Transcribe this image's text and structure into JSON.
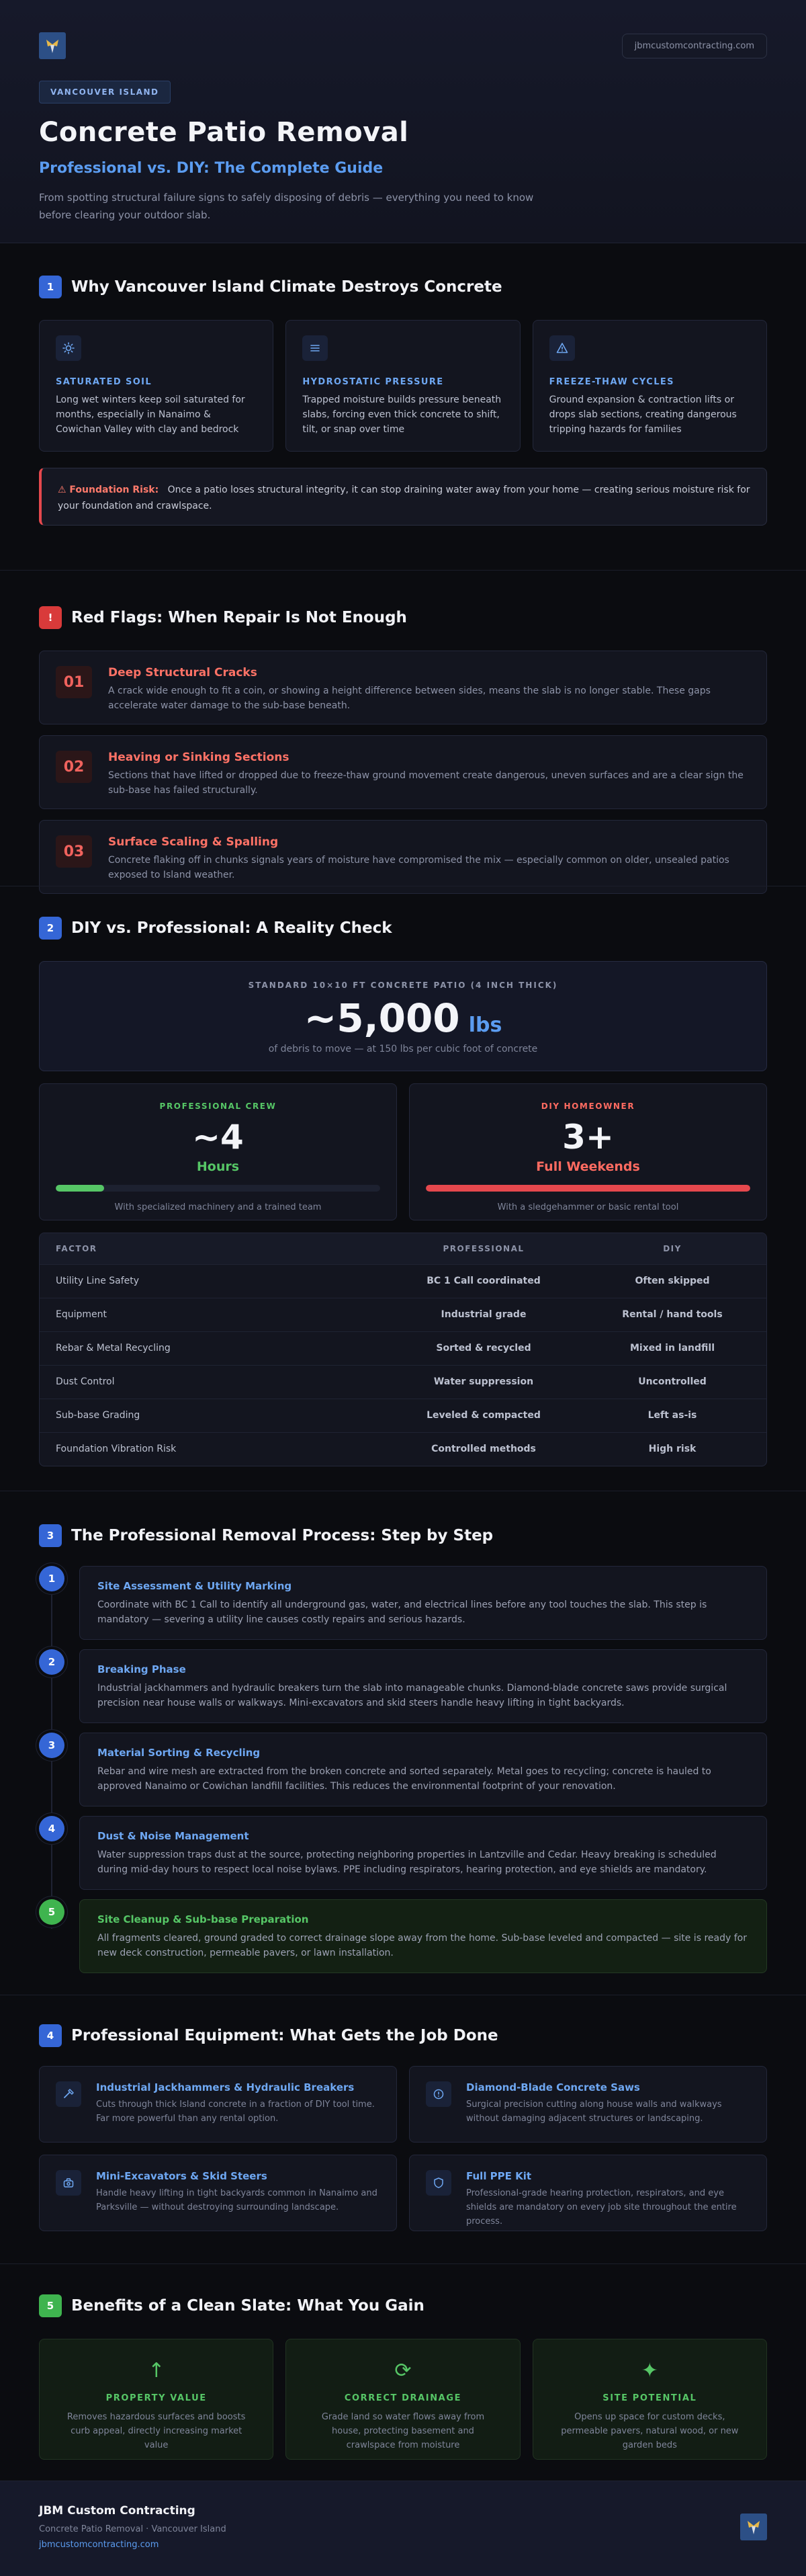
{
  "header": {
    "domain": "jbmcustomcontracting.com",
    "region": "VANCOUVER ISLAND",
    "title": "Concrete Patio Removal",
    "subtitle": "Professional vs. DIY: The Complete Guide",
    "lede": "From spotting structural failure signs to safely disposing of debris — everything you need to know before clearing your outdoor slab."
  },
  "climate": {
    "num": "1",
    "heading": "Why Vancouver Island Climate Destroys Concrete",
    "cards": [
      {
        "icon": "sun-icon",
        "label": "SATURATED SOIL",
        "text": "Long wet winters keep soil saturated for months, especially in Nanaimo & Cowichan Valley with clay and bedrock"
      },
      {
        "icon": "layers-icon",
        "label": "HYDROSTATIC PRESSURE",
        "text": "Trapped moisture builds pressure beneath slabs, forcing even thick concrete to shift, tilt, or snap over time"
      },
      {
        "icon": "warning-icon",
        "label": "FREEZE-THAW CYCLES",
        "text": "Ground expansion & contraction lifts or drops slab sections, creating dangerous tripping hazards for families"
      }
    ],
    "alert_key": "⚠ Foundation Risk:",
    "alert_text": "Once a patio loses structural integrity, it can stop draining water away from your home — creating serious moisture risk for your foundation and crawlspace."
  },
  "flags": {
    "num": "!",
    "heading": "Red Flags: When Repair Is Not Enough",
    "items": [
      {
        "n": "01",
        "title": "Deep Structural Cracks",
        "text": "A crack wide enough to fit a coin, or showing a height difference between sides, means the slab is no longer stable. These gaps accelerate water damage to the sub-base beneath."
      },
      {
        "n": "02",
        "title": "Heaving or Sinking Sections",
        "text": "Sections that have lifted or dropped due to freeze-thaw ground movement create dangerous, uneven surfaces and are a clear sign the sub-base has failed structurally."
      },
      {
        "n": "03",
        "title": "Surface Scaling & Spalling",
        "text": "Concrete flaking off in chunks signals years of moisture have compromised the mix — especially common on older, unsealed patios exposed to Island weather."
      }
    ]
  },
  "reality": {
    "num": "2",
    "heading": "DIY vs. Professional: A Reality Check",
    "stat_caption": "STANDARD 10×10 FT CONCRETE PATIO (4 INCH THICK)",
    "stat_value": "~5,000",
    "stat_unit": "lbs",
    "stat_note": "of debris to move — at 150 lbs per cubic foot of concrete",
    "pro": {
      "tag": "PROFESSIONAL CREW",
      "amount": "~4",
      "per": "Hours",
      "caption": "With specialized machinery and a trained team",
      "fill": 0.15,
      "color": "#56c666"
    },
    "diy": {
      "tag": "DIY HOMEOWNER",
      "amount": "3+",
      "per": "Full Weekends",
      "caption": "With a sledgehammer or basic rental tool",
      "fill": 1.0,
      "color": "#e5484d"
    },
    "table": {
      "headers": [
        "FACTOR",
        "PROFESSIONAL",
        "DIY"
      ],
      "rows": [
        [
          "Utility Line Safety",
          "BC 1 Call coordinated",
          "Often skipped"
        ],
        [
          "Equipment",
          "Industrial grade",
          "Rental / hand tools"
        ],
        [
          "Rebar & Metal Recycling",
          "Sorted & recycled",
          "Mixed in landfill"
        ],
        [
          "Dust Control",
          "Water suppression",
          "Uncontrolled"
        ],
        [
          "Sub-base Grading",
          "Leveled & compacted",
          "Left as-is"
        ],
        [
          "Foundation Vibration Risk",
          "Controlled methods",
          "High risk"
        ]
      ]
    }
  },
  "process": {
    "num": "3",
    "heading": "The Professional Removal Process: Step by Step",
    "steps": [
      {
        "n": "1",
        "title": "Site Assessment & Utility Marking",
        "text": "Coordinate with BC 1 Call to identify all underground gas, water, and electrical lines before any tool touches the slab. This step is mandatory — severing a utility line causes costly repairs and serious hazards."
      },
      {
        "n": "2",
        "title": "Breaking Phase",
        "text": "Industrial jackhammers and hydraulic breakers turn the slab into manageable chunks. Diamond-blade concrete saws provide surgical precision near house walls or walkways. Mini-excavators and skid steers handle heavy lifting in tight backyards."
      },
      {
        "n": "3",
        "title": "Material Sorting & Recycling",
        "text": "Rebar and wire mesh are extracted from the broken concrete and sorted separately. Metal goes to recycling; concrete is hauled to approved Nanaimo or Cowichan landfill facilities. This reduces the environmental footprint of your renovation."
      },
      {
        "n": "4",
        "title": "Dust & Noise Management",
        "text": "Water suppression traps dust at the source, protecting neighboring properties in Lantzville and Cedar. Heavy breaking is scheduled during mid-day hours to respect local noise bylaws. PPE including respirators, hearing protection, and eye shields are mandatory."
      },
      {
        "n": "5",
        "title": "Site Cleanup & Sub-base Preparation",
        "text": "All fragments cleared, ground graded to correct drainage slope away from the home. Sub-base leveled and compacted — site is ready for new deck construction, permeable pavers, or lawn installation."
      }
    ]
  },
  "equipment": {
    "num": "4",
    "heading": "Professional Equipment: What Gets the Job Done",
    "items": [
      {
        "icon": "hammer-icon",
        "title": "Industrial Jackhammers & Hydraulic Breakers",
        "text": "Cuts through thick Island concrete in a fraction of DIY tool time. Far more powerful than any rental option."
      },
      {
        "icon": "saw-blade-icon",
        "title": "Diamond-Blade Concrete Saws",
        "text": "Surgical precision cutting along house walls and walkways without damaging adjacent structures or landscaping."
      },
      {
        "icon": "excavator-icon",
        "title": "Mini-Excavators & Skid Steers",
        "text": "Handle heavy lifting in tight backyards common in Nanaimo and Parksville — without destroying surrounding landscape."
      },
      {
        "icon": "shield-icon",
        "title": "Full PPE Kit",
        "text": "Professional-grade hearing protection, respirators, and eye shields are mandatory on every job site throughout the entire process."
      }
    ]
  },
  "benefits": {
    "num": "5",
    "heading": "Benefits of a Clean Slate: What You Gain",
    "items": [
      {
        "icon": "arrow-up-icon",
        "glyph": "↑",
        "title": "PROPERTY VALUE",
        "text": "Removes hazardous surfaces and boosts curb appeal, directly increasing market value"
      },
      {
        "icon": "refresh-icon",
        "glyph": "⟳",
        "title": "CORRECT DRAINAGE",
        "text": "Grade land so water flows away from house, protecting basement and crawlspace from moisture"
      },
      {
        "icon": "sparkle-icon",
        "glyph": "✦",
        "title": "SITE POTENTIAL",
        "text": "Opens up space for custom decks, permeable pavers, natural wood, or new garden beds"
      }
    ]
  },
  "footer": {
    "brand": "JBM Custom Contracting",
    "tagline": "Concrete Patio Removal · Vancouver Island",
    "site": "jbmcustomcontracting.com"
  }
}
